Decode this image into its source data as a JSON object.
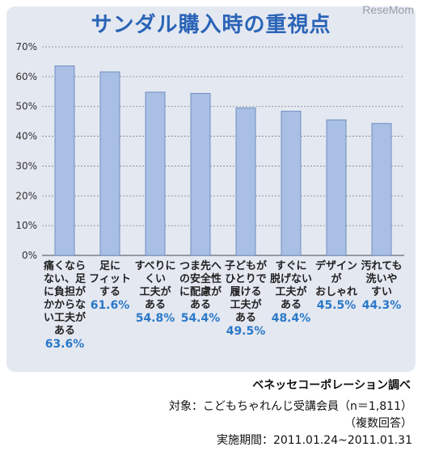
{
  "watermark": "ReseMom",
  "chart_data": {
    "type": "bar",
    "title": "サンダル購入時の重視点",
    "categories": [
      "痛くなら\nない、足\nに負担が\nかからな\nい工夫が\nある",
      "足に\nフィット\nする",
      "すべりに\nくい\n工夫が\nある",
      "つま先へ\nの安全性\nに配慮が\nある",
      "子どもが\nひとりで\n履ける\n工夫が\nある",
      "すぐに\n脱げない\n工夫が\nある",
      "デザイン\nが\nおしゃれ",
      "汚れても\n洗いや\nすい"
    ],
    "value_labels": [
      "63.6%",
      "61.6%",
      "54.8%",
      "54.4%",
      "49.5%",
      "48.4%",
      "45.5%",
      "44.3%"
    ],
    "values": [
      63.6,
      61.6,
      54.8,
      54.4,
      49.5,
      48.4,
      45.5,
      44.3
    ],
    "yticks": [
      "0%",
      "10%",
      "20%",
      "30%",
      "40%",
      "50%",
      "60%",
      "70%"
    ],
    "ylim": [
      0,
      70
    ],
    "grid": true,
    "colors": {
      "bar": "#a9bfe3",
      "bar_edge": "#6f8fc3",
      "grid": "#7a7f88"
    }
  },
  "footer": {
    "source": "ベネッセコーポレーション調べ",
    "subject": "対象：こどもちゃれんじ受講会員（n＝1,811）",
    "multi": "（複数回答）",
    "period": "実施期間：2011.01.24~2011.01.31"
  }
}
